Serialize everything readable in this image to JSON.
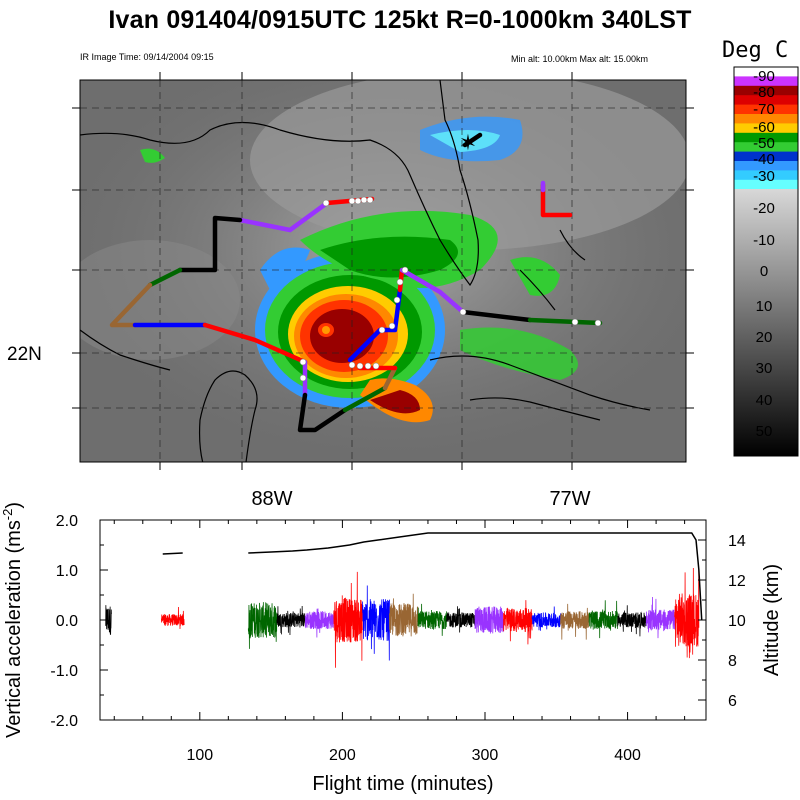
{
  "title": "Ivan 091404/0915UTC 125kt  R=0-1000km 340LST",
  "ir_image_time": "IR Image Time: 09/14/2004 09:15",
  "altitude_range": "Min alt: 10.00km  Max alt: 15.00km",
  "map": {
    "lat_label": "22N",
    "lon_labels": [
      "88W",
      "77W"
    ],
    "center_marker": "star-icon",
    "track_colors": [
      "#000000",
      "#0000ff",
      "#9933ff",
      "#ff0000",
      "#006600",
      "#996633",
      "#ffffff"
    ]
  },
  "colorbar": {
    "title": "Deg C",
    "ticks": [
      "-90",
      "-80",
      "-70",
      "-60",
      "-50",
      "-40",
      "-30",
      "-20",
      "-10",
      "0",
      "10",
      "20",
      "30",
      "40",
      "50"
    ],
    "colors": {
      "-90": "#ffffff",
      "-85": "#cc33ff",
      "-80": "#990000",
      "-75": "#dd0000",
      "-70": "#ff3300",
      "-65": "#ff8800",
      "-60": "#ffcc00",
      "-55": "#009900",
      "-50": "#33cc33",
      "-45": "#0033cc",
      "-40": "#3399ff",
      "-35": "#33ccff",
      "-30": "#66ffff"
    }
  },
  "chart_data": {
    "type": "line",
    "xlabel": "Flight time (minutes)",
    "ylabel": "Vertical acceleration (ms",
    "ylabel_sup": "-2",
    "ylabel_close": ")",
    "y2label": "Altitude (km)",
    "xlim": [
      30,
      455
    ],
    "ylim": [
      -2.0,
      2.0
    ],
    "y2lim": [
      5,
      15
    ],
    "x_ticks": [
      100,
      200,
      300,
      400
    ],
    "x_tick_labels": [
      "100",
      "200",
      "300",
      "400"
    ],
    "y_ticks": [
      -2.0,
      -1.0,
      0.0,
      1.0,
      2.0
    ],
    "y_tick_labels": [
      "-2.0",
      "-1.0",
      "0.0",
      "1.0",
      "2.0"
    ],
    "y2_ticks": [
      6,
      8,
      10,
      12,
      14
    ],
    "y2_tick_labels": [
      "6",
      "8",
      "10",
      "12",
      "14"
    ],
    "altitude_series": [
      {
        "x": [
          74,
          88
        ],
        "y": [
          13.3,
          13.35
        ]
      },
      {
        "x": [
          134,
          150,
          165,
          175,
          190,
          205,
          215,
          225,
          240,
          260,
          300,
          340,
          380,
          420,
          445,
          448,
          450,
          452
        ],
        "y": [
          13.35,
          13.4,
          13.45,
          13.5,
          13.6,
          13.75,
          13.9,
          14.0,
          14.15,
          14.35,
          14.35,
          14.35,
          14.35,
          14.35,
          14.35,
          14.0,
          12.5,
          10.0
        ]
      }
    ],
    "acceleration_segments": [
      {
        "x0": 34,
        "x1": 38,
        "color": "#000000",
        "amp": 0.5
      },
      {
        "x0": 73,
        "x1": 89,
        "color": "#ff0000",
        "amp": 0.2
      },
      {
        "x0": 134,
        "x1": 154,
        "color": "#006600",
        "amp": 0.6
      },
      {
        "x0": 154,
        "x1": 174,
        "color": "#000000",
        "amp": 0.25
      },
      {
        "x0": 174,
        "x1": 194,
        "color": "#9933ff",
        "amp": 0.3
      },
      {
        "x0": 194,
        "x1": 214,
        "color": "#ff0000",
        "amp": 0.75
      },
      {
        "x0": 214,
        "x1": 233,
        "color": "#0000ff",
        "amp": 0.7
      },
      {
        "x0": 233,
        "x1": 253,
        "color": "#996633",
        "amp": 0.55
      },
      {
        "x0": 253,
        "x1": 273,
        "color": "#006600",
        "amp": 0.3
      },
      {
        "x0": 273,
        "x1": 293,
        "color": "#000000",
        "amp": 0.25
      },
      {
        "x0": 293,
        "x1": 313,
        "color": "#9933ff",
        "amp": 0.45
      },
      {
        "x0": 313,
        "x1": 333,
        "color": "#ff0000",
        "amp": 0.4
      },
      {
        "x0": 333,
        "x1": 353,
        "color": "#0000ff",
        "amp": 0.25
      },
      {
        "x0": 353,
        "x1": 373,
        "color": "#996633",
        "amp": 0.3
      },
      {
        "x0": 373,
        "x1": 393,
        "color": "#006600",
        "amp": 0.3
      },
      {
        "x0": 393,
        "x1": 413,
        "color": "#000000",
        "amp": 0.25
      },
      {
        "x0": 413,
        "x1": 433,
        "color": "#9933ff",
        "amp": 0.35
      },
      {
        "x0": 433,
        "x1": 450,
        "color": "#ff0000",
        "amp": 0.9
      }
    ]
  }
}
